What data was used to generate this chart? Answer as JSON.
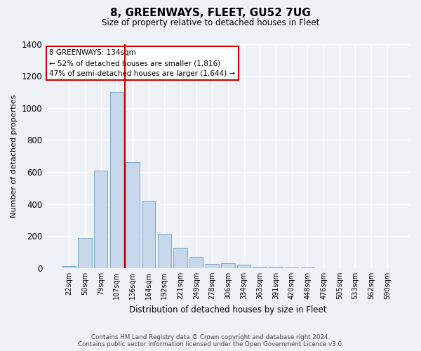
{
  "title": "8, GREENWAYS, FLEET, GU52 7UG",
  "subtitle": "Size of property relative to detached houses in Fleet",
  "xlabel": "Distribution of detached houses by size in Fleet",
  "ylabel": "Number of detached properties",
  "bar_color": "#c8d8ec",
  "bar_edge_color": "#7aaac8",
  "categories": [
    "22sqm",
    "50sqm",
    "79sqm",
    "107sqm",
    "136sqm",
    "164sqm",
    "192sqm",
    "221sqm",
    "249sqm",
    "278sqm",
    "306sqm",
    "334sqm",
    "363sqm",
    "391sqm",
    "420sqm",
    "448sqm",
    "476sqm",
    "505sqm",
    "533sqm",
    "562sqm",
    "590sqm"
  ],
  "values": [
    15,
    190,
    610,
    1100,
    660,
    420,
    215,
    125,
    70,
    28,
    30,
    22,
    10,
    8,
    5,
    2,
    0,
    0,
    0,
    0,
    0
  ],
  "ylim": [
    0,
    1400
  ],
  "yticks": [
    0,
    200,
    400,
    600,
    800,
    1000,
    1200,
    1400
  ],
  "property_bin_index": 4,
  "annotation_title": "8 GREENWAYS: 134sqm",
  "annotation_line1": "← 52% of detached houses are smaller (1,816)",
  "annotation_line2": "47% of semi-detached houses are larger (1,644) →",
  "footer_line1": "Contains HM Land Registry data © Crown copyright and database right 2024.",
  "footer_line2": "Contains public sector information licensed under the Open Government Licence v3.0.",
  "bg_color": "#eef2f7",
  "grid_color": "#ffffff",
  "red_color": "#cc0000"
}
